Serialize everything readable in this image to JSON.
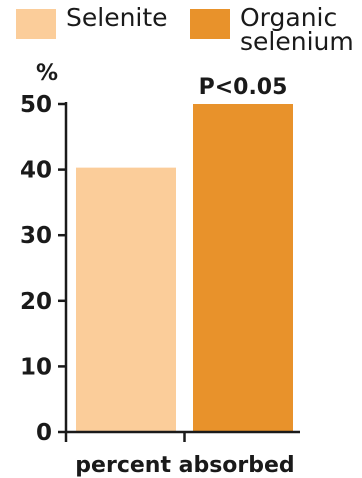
{
  "chart_data": {
    "type": "bar",
    "categories": [
      "percent absorbed"
    ],
    "series": [
      {
        "name": "Selenite",
        "values": [
          40.3
        ],
        "color": "#fbcd9a"
      },
      {
        "name": "Organic\nselenium",
        "values": [
          50
        ],
        "color": "#e8922b"
      }
    ],
    "xlabel": "percent absorbed",
    "ylabel": "%",
    "ylim": [
      0,
      50
    ],
    "yticks": [
      0,
      10,
      20,
      30,
      40,
      50
    ],
    "grid": false,
    "legend": "top",
    "annotations": [
      {
        "text": "P<0.05",
        "series": "Organic\nselenium"
      }
    ],
    "axis_color": "#1a1a1a"
  }
}
